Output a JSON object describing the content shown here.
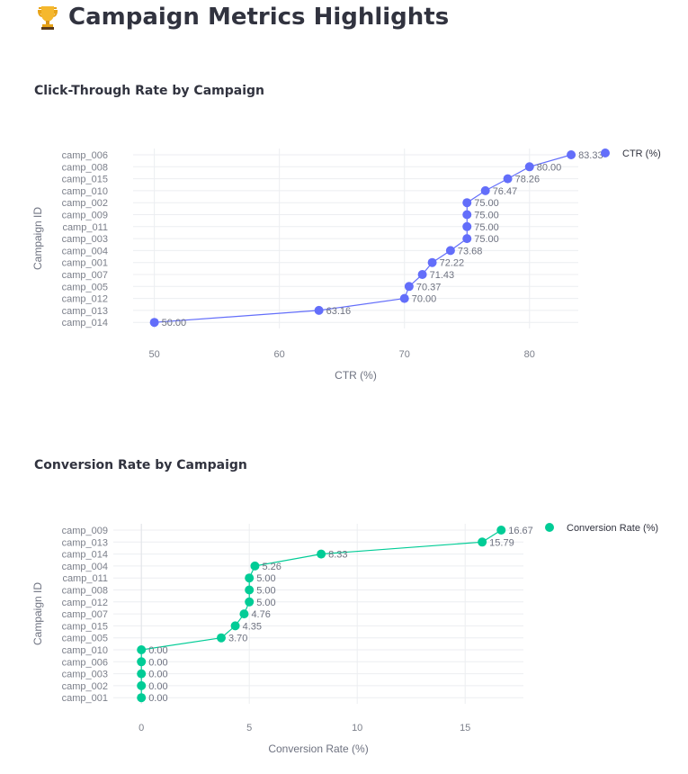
{
  "page": {
    "title": "Campaign Metrics Highlights",
    "title_icon": "trophy-icon"
  },
  "chart_data": [
    {
      "type": "line",
      "mode": "lines+markers+text",
      "title": "Click-Through Rate by Campaign",
      "xlabel": "CTR (%)",
      "ylabel": "Campaign ID",
      "legend": "CTR (%)",
      "legend_position": "top-right",
      "color": "#636efa",
      "grid": true,
      "xlim": [
        48.3,
        83.9
      ],
      "xticks": [
        50,
        60,
        70,
        80
      ],
      "categories": [
        "camp_006",
        "camp_008",
        "camp_015",
        "camp_010",
        "camp_002",
        "camp_009",
        "camp_011",
        "camp_003",
        "camp_004",
        "camp_001",
        "camp_007",
        "camp_005",
        "camp_012",
        "camp_013",
        "camp_014"
      ],
      "values": [
        83.33,
        80.0,
        78.26,
        76.47,
        75.0,
        75.0,
        75.0,
        75.0,
        73.68,
        72.22,
        71.43,
        70.37,
        70.0,
        63.16,
        50.0
      ],
      "labels": [
        "83.33",
        "80.00",
        "78.26",
        "76.47",
        "75.00",
        "75.00",
        "75.00",
        "75.00",
        "73.68",
        "72.22",
        "71.43",
        "70.37",
        "70.00",
        "63.16",
        "50.00"
      ]
    },
    {
      "type": "line",
      "mode": "lines+markers+text",
      "title": "Conversion Rate by Campaign",
      "xlabel": "Conversion Rate (%)",
      "ylabel": "Campaign ID",
      "legend": "Conversion Rate (%)",
      "legend_position": "top-right",
      "color": "#00cc96",
      "grid": true,
      "xlim": [
        -1.3,
        17.7
      ],
      "xticks": [
        0,
        5,
        10,
        15
      ],
      "categories": [
        "camp_009",
        "camp_013",
        "camp_014",
        "camp_004",
        "camp_011",
        "camp_008",
        "camp_012",
        "camp_007",
        "camp_015",
        "camp_005",
        "camp_010",
        "camp_006",
        "camp_003",
        "camp_002",
        "camp_001"
      ],
      "values": [
        16.67,
        15.79,
        8.33,
        5.26,
        5.0,
        5.0,
        5.0,
        4.76,
        4.35,
        3.7,
        0.0,
        0.0,
        0.0,
        0.0,
        0.0
      ],
      "labels": [
        "16.67",
        "15.79",
        "8.33",
        "5.26",
        "5.00",
        "5.00",
        "5.00",
        "4.76",
        "4.35",
        "3.70",
        "0.00",
        "0.00",
        "0.00",
        "0.00",
        "0.00"
      ]
    }
  ]
}
